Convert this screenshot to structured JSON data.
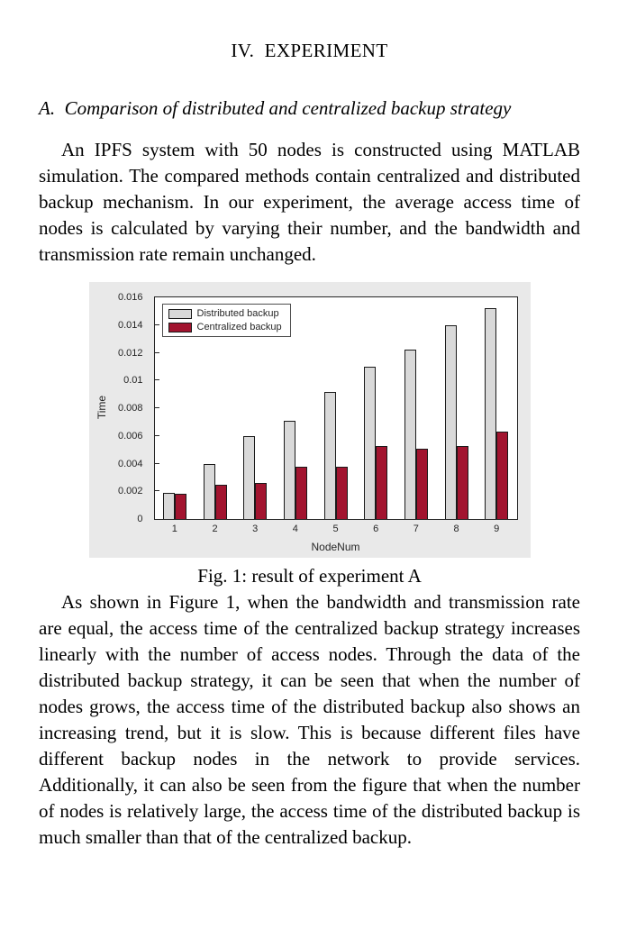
{
  "paper": {
    "section_heading": "IV.  EXPERIMENT",
    "subsection_heading": "A.  Comparison of distributed and centralized backup strategy",
    "paragraph_1": "An IPFS system with 50 nodes is constructed using MATLAB simulation. The compared methods contain centralized and distributed backup mechanism. In our experiment, the average access time of nodes is calculated by varying their number, and the bandwidth and transmission rate remain unchanged.",
    "figure_caption": "Fig. 1: result of experiment A",
    "paragraph_2": "As shown in Figure 1, when the bandwidth and transmission rate are equal, the access time of the centralized backup strategy increases linearly with the number of access nodes. Through the data of the distributed backup strategy, it can be seen that when the number of nodes grows, the access time of the distributed backup also shows an increasing trend, but it is slow. This is because different files have different backup nodes in the network to provide services. Additionally, it can also be seen from the figure that when the number of nodes is relatively large, the access time of the distributed backup is much smaller than that of the centralized backup."
  },
  "chart_data": {
    "type": "bar",
    "title": "",
    "xlabel": "NodeNum",
    "ylabel": "Time",
    "categories": [
      "1",
      "2",
      "3",
      "4",
      "5",
      "6",
      "7",
      "8",
      "9"
    ],
    "series": [
      {
        "name": "Distributed backup",
        "color": "#d9d9d9",
        "edge_color": "#1a1a1a",
        "values": [
          0.0019,
          0.004,
          0.006,
          0.0071,
          0.0092,
          0.011,
          0.0122,
          0.014,
          0.0152
        ]
      },
      {
        "name": "Centralized backup",
        "color": "#a2142f",
        "edge_color": "#1a1a1a",
        "values": [
          0.0018,
          0.0025,
          0.0026,
          0.0038,
          0.0038,
          0.0053,
          0.0051,
          0.0053,
          0.0063
        ]
      }
    ],
    "ylim": [
      0,
      0.016
    ],
    "yticks": [
      0,
      0.002,
      0.004,
      0.006,
      0.008,
      0.01,
      0.012,
      0.014,
      0.016
    ],
    "grid": false,
    "legend_position": "top-left",
    "panel_background": "#e9e9e9",
    "plot_background": "#ffffff"
  }
}
